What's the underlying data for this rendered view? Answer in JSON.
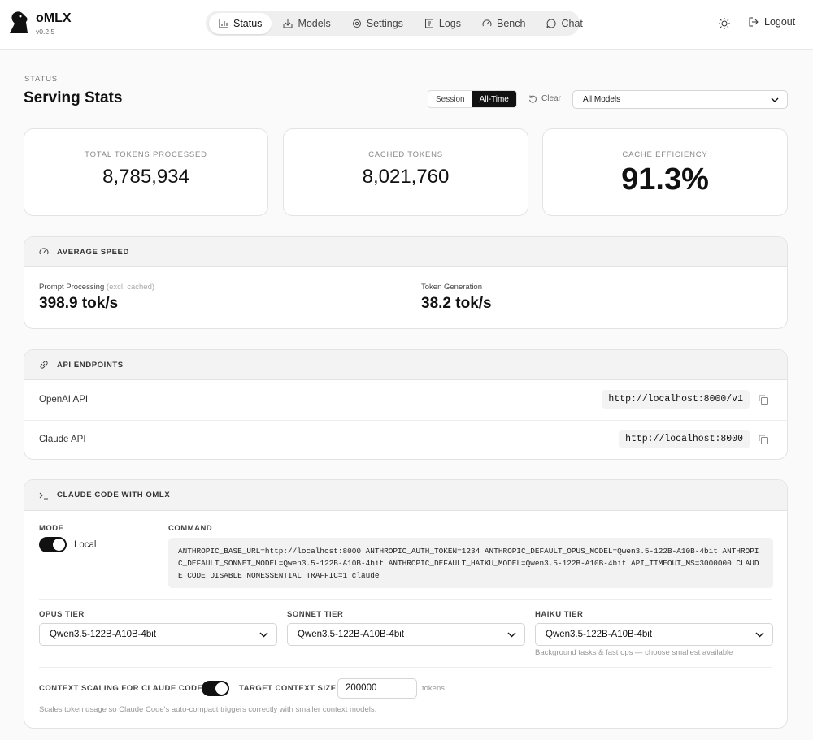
{
  "header": {
    "brand": "oMLX",
    "version": "v0.2.5",
    "nav": [
      "Status",
      "Models",
      "Settings",
      "Logs",
      "Bench",
      "Chat"
    ],
    "logout": "Logout"
  },
  "page": {
    "eyebrow": "STATUS",
    "title": "Serving Stats",
    "range_toggle": [
      "Session",
      "All-Time"
    ],
    "clear": "Clear",
    "model_filter": "All Models"
  },
  "stats": [
    {
      "label": "TOTAL TOKENS PROCESSED",
      "value": "8,785,934"
    },
    {
      "label": "CACHED TOKENS",
      "value": "8,021,760"
    },
    {
      "label": "CACHE EFFICIENCY",
      "value": "91.3%"
    }
  ],
  "speed": {
    "title": "AVERAGE SPEED",
    "items": [
      {
        "label": "Prompt Processing",
        "note": "(excl. cached)",
        "value": "398.9 tok/s"
      },
      {
        "label": "Token Generation",
        "value": "38.2 tok/s"
      }
    ]
  },
  "api": {
    "title": "API ENDPOINTS",
    "rows": [
      {
        "name": "OpenAI API",
        "url": "http://localhost:8000/v1"
      },
      {
        "name": "Claude API",
        "url": "http://localhost:8000"
      }
    ]
  },
  "claude": {
    "title": "CLAUDE CODE WITH OMLX",
    "mode_label": "MODE",
    "mode_value": "Local",
    "command_label": "COMMAND",
    "command": "ANTHROPIC_BASE_URL=http://localhost:8000 ANTHROPIC_AUTH_TOKEN=1234 ANTHROPIC_DEFAULT_OPUS_MODEL=Qwen3.5-122B-A10B-4bit ANTHROPIC_DEFAULT_SONNET_MODEL=Qwen3.5-122B-A10B-4bit ANTHROPIC_DEFAULT_HAIKU_MODEL=Qwen3.5-122B-A10B-4bit API_TIMEOUT_MS=3000000 CLAUDE_CODE_DISABLE_NONESSENTIAL_TRAFFIC=1 claude",
    "tiers": [
      {
        "label": "OPUS TIER",
        "model": "Qwen3.5-122B-A10B-4bit"
      },
      {
        "label": "SONNET TIER",
        "model": "Qwen3.5-122B-A10B-4bit"
      },
      {
        "label": "HAIKU TIER",
        "model": "Qwen3.5-122B-A10B-4bit",
        "hint": "Background tasks & fast ops — choose smallest available"
      }
    ],
    "context_scaling_label": "CONTEXT SCALING FOR CLAUDE CODE",
    "target_label": "TARGET CONTEXT SIZE",
    "target_value": "200000",
    "target_unit": "tokens",
    "footnote": "Scales token usage so Claude Code's auto-compact triggers correctly with smaller context models."
  }
}
